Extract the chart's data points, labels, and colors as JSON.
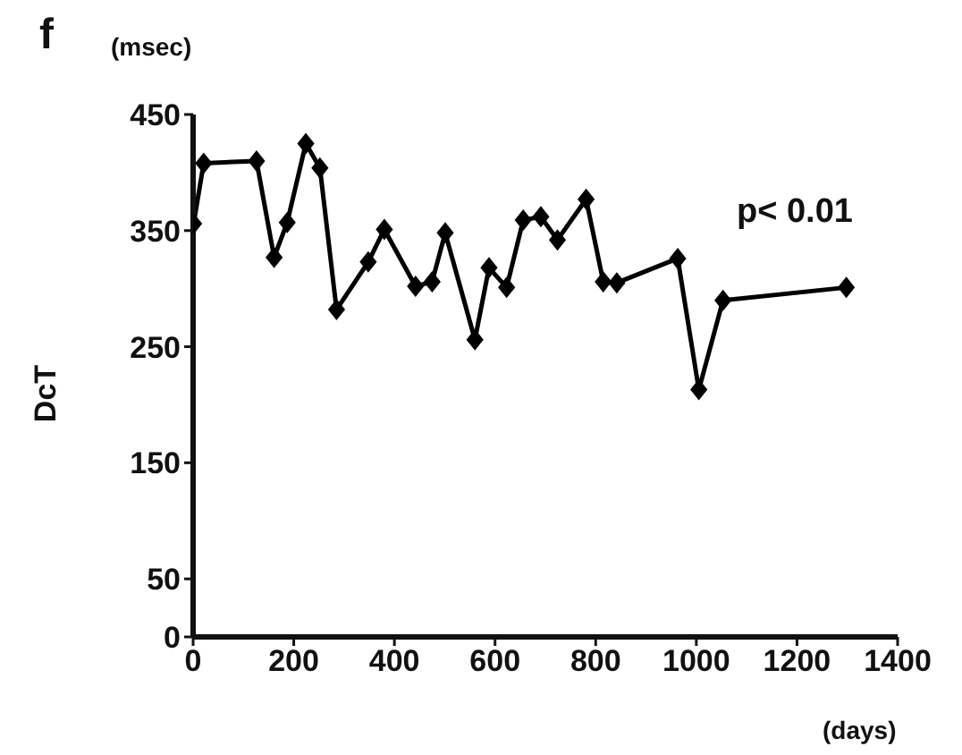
{
  "chart_data": {
    "type": "line",
    "title": "f",
    "ylabel": "DcT",
    "xlabel": "(days)",
    "annotations": [
      "(msec)",
      "p< 0.01"
    ],
    "x": [
      1,
      21,
      126,
      161,
      187,
      224,
      252,
      285,
      348,
      380,
      442,
      475,
      501,
      560,
      588,
      623,
      656,
      691,
      724,
      781,
      815,
      842,
      963,
      1005,
      1053,
      1298
    ],
    "series": [
      {
        "color": "#000000",
        "values": [
          356,
          408,
          410,
          327,
          357,
          425,
          404,
          282,
          323,
          351,
          302,
          306,
          348,
          256,
          318,
          301,
          359,
          362,
          342,
          377,
          306,
          305,
          326,
          213,
          290,
          301
        ]
      }
    ],
    "xlim": [
      0,
      1400
    ],
    "xticks": [
      0,
      200,
      400,
      600,
      800,
      1000,
      1200,
      1400
    ],
    "ylim": [
      0,
      450
    ],
    "yticks": [
      0,
      50,
      150,
      250,
      350,
      450
    ],
    "marker": "diamond",
    "line_style": "solid"
  }
}
